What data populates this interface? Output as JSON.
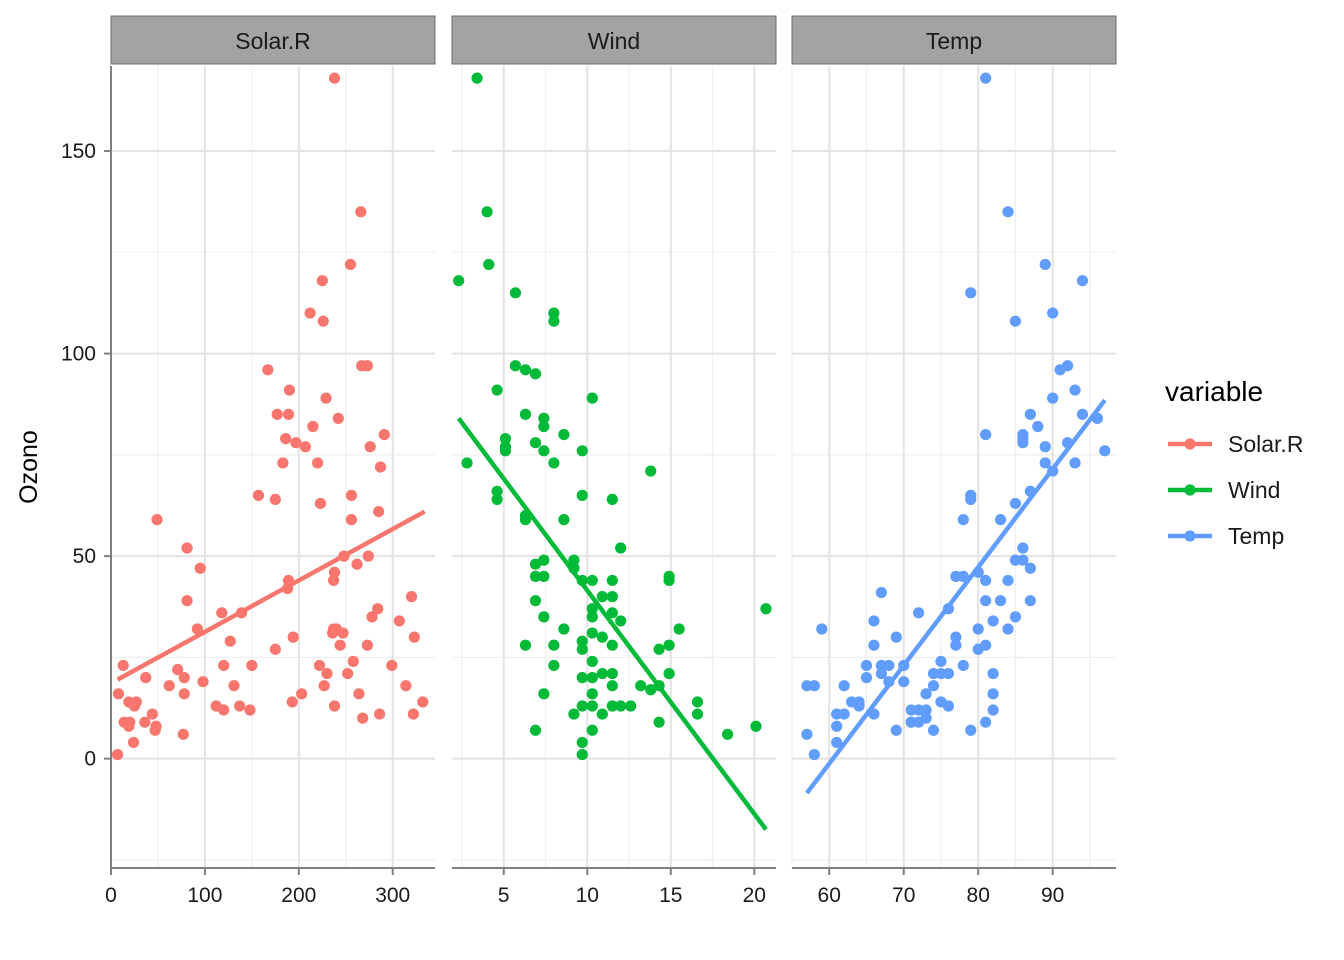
{
  "chart_data": {
    "type": "scatter",
    "facets": [
      "Solar.R",
      "Wind",
      "Temp"
    ],
    "ylabel": "Ozono",
    "ylim": [
      -27,
      171
    ],
    "yticks": [
      0,
      50,
      100,
      150
    ],
    "yticks_label": [
      "0",
      "50",
      "100",
      "150"
    ],
    "legend": {
      "title": "variable",
      "entries": [
        "Solar.R",
        "Wind",
        "Temp"
      ],
      "position": "right"
    },
    "panels": [
      {
        "name": "Solar.R",
        "color": "#F8766D",
        "xlim": [
          0,
          345
        ],
        "xticks": [
          0,
          100,
          200,
          300
        ],
        "xticks_label": [
          "0",
          "100",
          "200",
          "300"
        ],
        "fit": [
          [
            7,
            19.5
          ],
          [
            334,
            61
          ]
        ],
        "points": [
          [
            7,
            1
          ],
          [
            8,
            16
          ],
          [
            13,
            23
          ],
          [
            14,
            9
          ],
          [
            19,
            14
          ],
          [
            19,
            8
          ],
          [
            20,
            9
          ],
          [
            24,
            4
          ],
          [
            25,
            13
          ],
          [
            27,
            14
          ],
          [
            36,
            9
          ],
          [
            37,
            20
          ],
          [
            44,
            11
          ],
          [
            47,
            7
          ],
          [
            48,
            8
          ],
          [
            49,
            59
          ],
          [
            62,
            18
          ],
          [
            71,
            22
          ],
          [
            77,
            6
          ],
          [
            78,
            16
          ],
          [
            78,
            20
          ],
          [
            81,
            39
          ],
          [
            81,
            52
          ],
          [
            92,
            32
          ],
          [
            95,
            47
          ],
          [
            98,
            19
          ],
          [
            112,
            13
          ],
          [
            118,
            36
          ],
          [
            120,
            23
          ],
          [
            120,
            12
          ],
          [
            127,
            29
          ],
          [
            131,
            18
          ],
          [
            137,
            13
          ],
          [
            139,
            36
          ],
          [
            148,
            12
          ],
          [
            150,
            23
          ],
          [
            157,
            65
          ],
          [
            167,
            96
          ],
          [
            175,
            64
          ],
          [
            175,
            27
          ],
          [
            177,
            85
          ],
          [
            183,
            73
          ],
          [
            186,
            79
          ],
          [
            188,
            42
          ],
          [
            189,
            85
          ],
          [
            189,
            44
          ],
          [
            190,
            91
          ],
          [
            193,
            14
          ],
          [
            194,
            30
          ],
          [
            197,
            78
          ],
          [
            203,
            16
          ],
          [
            207,
            77
          ],
          [
            212,
            110
          ],
          [
            215,
            82
          ],
          [
            220,
            73
          ],
          [
            222,
            23
          ],
          [
            223,
            63
          ],
          [
            225,
            118
          ],
          [
            226,
            108
          ],
          [
            227,
            18
          ],
          [
            229,
            89
          ],
          [
            230,
            21
          ],
          [
            236,
            31
          ],
          [
            237,
            44
          ],
          [
            238,
            168
          ],
          [
            238,
            46
          ],
          [
            238,
            13
          ],
          [
            240,
            32
          ],
          [
            242,
            84
          ],
          [
            244,
            28
          ],
          [
            247,
            31
          ],
          [
            248,
            50
          ],
          [
            252,
            21
          ],
          [
            255,
            122
          ],
          [
            256,
            59
          ],
          [
            256,
            65
          ],
          [
            258,
            24
          ],
          [
            262,
            48
          ],
          [
            264,
            16
          ],
          [
            266,
            135
          ],
          [
            267,
            97
          ],
          [
            268,
            10
          ],
          [
            273,
            97
          ],
          [
            273,
            28
          ],
          [
            274,
            50
          ],
          [
            276,
            77
          ],
          [
            278,
            35
          ],
          [
            284,
            37
          ],
          [
            285,
            61
          ],
          [
            286,
            11
          ],
          [
            287,
            72
          ],
          [
            291,
            80
          ],
          [
            299,
            23
          ],
          [
            307,
            34
          ],
          [
            314,
            18
          ],
          [
            320,
            40
          ],
          [
            322,
            11
          ],
          [
            323,
            30
          ],
          [
            332,
            14
          ],
          [
            237,
            32
          ]
        ]
      },
      {
        "name": "Wind",
        "color": "#00BA38",
        "xlim": [
          1.9,
          21.3
        ],
        "xticks": [
          5,
          10,
          15,
          20
        ],
        "xticks_label": [
          "5",
          "10",
          "15",
          "20"
        ],
        "fit": [
          [
            2.3,
            84
          ],
          [
            20.7,
            -17.5
          ]
        ],
        "points": [
          [
            2.3,
            118
          ],
          [
            2.8,
            73
          ],
          [
            3.4,
            168
          ],
          [
            4.0,
            135
          ],
          [
            4.1,
            122
          ],
          [
            4.6,
            91
          ],
          [
            4.6,
            64
          ],
          [
            4.6,
            66
          ],
          [
            5.1,
            79
          ],
          [
            5.1,
            77
          ],
          [
            5.1,
            76
          ],
          [
            5.7,
            115
          ],
          [
            5.7,
            97
          ],
          [
            6.3,
            96
          ],
          [
            6.3,
            85
          ],
          [
            6.3,
            60
          ],
          [
            6.3,
            59
          ],
          [
            6.9,
            95
          ],
          [
            6.9,
            78
          ],
          [
            6.9,
            48
          ],
          [
            6.9,
            45
          ],
          [
            6.9,
            39
          ],
          [
            7.4,
            84
          ],
          [
            7.4,
            82
          ],
          [
            7.4,
            76
          ],
          [
            7.4,
            49
          ],
          [
            7.4,
            45
          ],
          [
            7.4,
            35
          ],
          [
            8.0,
            110
          ],
          [
            8.0,
            108
          ],
          [
            8.0,
            73
          ],
          [
            8.0,
            23
          ],
          [
            8.6,
            80
          ],
          [
            8.6,
            59
          ],
          [
            8.6,
            32
          ],
          [
            9.2,
            49
          ],
          [
            9.2,
            47
          ],
          [
            9.7,
            76
          ],
          [
            9.7,
            65
          ],
          [
            9.7,
            44
          ],
          [
            9.7,
            29
          ],
          [
            9.7,
            27
          ],
          [
            9.7,
            20
          ],
          [
            9.7,
            13
          ],
          [
            9.7,
            4
          ],
          [
            9.7,
            1
          ],
          [
            10.3,
            89
          ],
          [
            10.3,
            44
          ],
          [
            10.3,
            37
          ],
          [
            10.3,
            35
          ],
          [
            10.3,
            31
          ],
          [
            10.3,
            24
          ],
          [
            10.3,
            20
          ],
          [
            10.3,
            16
          ],
          [
            10.3,
            13
          ],
          [
            10.9,
            40
          ],
          [
            10.9,
            30
          ],
          [
            10.9,
            21
          ],
          [
            10.9,
            11
          ],
          [
            11.5,
            64
          ],
          [
            11.5,
            44
          ],
          [
            11.5,
            40
          ],
          [
            11.5,
            36
          ],
          [
            11.5,
            28
          ],
          [
            11.5,
            21
          ],
          [
            11.5,
            18
          ],
          [
            11.5,
            13
          ],
          [
            12.0,
            52
          ],
          [
            12.0,
            34
          ],
          [
            12.6,
            13
          ],
          [
            13.2,
            18
          ],
          [
            13.8,
            71
          ],
          [
            14.3,
            27
          ],
          [
            14.3,
            18
          ],
          [
            14.9,
            45
          ],
          [
            14.9,
            44
          ],
          [
            14.9,
            28
          ],
          [
            14.9,
            21
          ],
          [
            15.5,
            32
          ],
          [
            16.6,
            14
          ],
          [
            16.6,
            11
          ],
          [
            18.4,
            6
          ],
          [
            20.1,
            8
          ],
          [
            20.7,
            37
          ],
          [
            8.0,
            28
          ],
          [
            6.3,
            28
          ],
          [
            7.4,
            16
          ],
          [
            6.9,
            7
          ],
          [
            14.3,
            9
          ],
          [
            9.2,
            11
          ],
          [
            12.0,
            13
          ],
          [
            10.3,
            7
          ],
          [
            13.8,
            17
          ]
        ]
      },
      {
        "name": "Temp",
        "color": "#619CFF",
        "xlim": [
          55,
          98.5
        ],
        "xticks": [
          60,
          70,
          80,
          90
        ],
        "xticks_label": [
          "60",
          "70",
          "80",
          "90"
        ],
        "fit": [
          [
            57,
            -8.5
          ],
          [
            97,
            88.5
          ]
        ],
        "points": [
          [
            57,
            6
          ],
          [
            57,
            18
          ],
          [
            58,
            18
          ],
          [
            58,
            1
          ],
          [
            59,
            32
          ],
          [
            61,
            8
          ],
          [
            61,
            4
          ],
          [
            61,
            11
          ],
          [
            62,
            18
          ],
          [
            62,
            11
          ],
          [
            63,
            14
          ],
          [
            64,
            14
          ],
          [
            64,
            13
          ],
          [
            65,
            23
          ],
          [
            65,
            20
          ],
          [
            66,
            34
          ],
          [
            66,
            28
          ],
          [
            66,
            11
          ],
          [
            67,
            41
          ],
          [
            67,
            23
          ],
          [
            67,
            21
          ],
          [
            68,
            23
          ],
          [
            68,
            19
          ],
          [
            69,
            30
          ],
          [
            69,
            7
          ],
          [
            70,
            23
          ],
          [
            70,
            19
          ],
          [
            71,
            12
          ],
          [
            71,
            9
          ],
          [
            71,
            9
          ],
          [
            72,
            36
          ],
          [
            72,
            9
          ],
          [
            72,
            12
          ],
          [
            73,
            16
          ],
          [
            73,
            10
          ],
          [
            73,
            12
          ],
          [
            74,
            21
          ],
          [
            74,
            18
          ],
          [
            74,
            7
          ],
          [
            75,
            24
          ],
          [
            75,
            21
          ],
          [
            75,
            14
          ],
          [
            76,
            21
          ],
          [
            76,
            13
          ],
          [
            76,
            37
          ],
          [
            77,
            28
          ],
          [
            77,
            30
          ],
          [
            77,
            45
          ],
          [
            78,
            59
          ],
          [
            78,
            45
          ],
          [
            78,
            23
          ],
          [
            79,
            64
          ],
          [
            79,
            65
          ],
          [
            79,
            7
          ],
          [
            80,
            46
          ],
          [
            80,
            27
          ],
          [
            80,
            32
          ],
          [
            81,
            39
          ],
          [
            81,
            44
          ],
          [
            81,
            28
          ],
          [
            81,
            9
          ],
          [
            81,
            168
          ],
          [
            82,
            16
          ],
          [
            82,
            21
          ],
          [
            82,
            34
          ],
          [
            82,
            12
          ],
          [
            83,
            59
          ],
          [
            83,
            39
          ],
          [
            84,
            44
          ],
          [
            84,
            135
          ],
          [
            84,
            32
          ],
          [
            85,
            63
          ],
          [
            85,
            49
          ],
          [
            85,
            108
          ],
          [
            86,
            80
          ],
          [
            86,
            52
          ],
          [
            86,
            78
          ],
          [
            86,
            79
          ],
          [
            86,
            49
          ],
          [
            87,
            85
          ],
          [
            87,
            66
          ],
          [
            87,
            47
          ],
          [
            87,
            39
          ],
          [
            88,
            82
          ],
          [
            89,
            77
          ],
          [
            89,
            122
          ],
          [
            89,
            73
          ],
          [
            90,
            71
          ],
          [
            90,
            89
          ],
          [
            90,
            110
          ],
          [
            91,
            96
          ],
          [
            92,
            97
          ],
          [
            92,
            78
          ],
          [
            93,
            91
          ],
          [
            93,
            73
          ],
          [
            94,
            85
          ],
          [
            94,
            118
          ],
          [
            96,
            84
          ],
          [
            97,
            76
          ],
          [
            81,
            80
          ],
          [
            79,
            115
          ],
          [
            85,
            35
          ]
        ]
      }
    ]
  }
}
